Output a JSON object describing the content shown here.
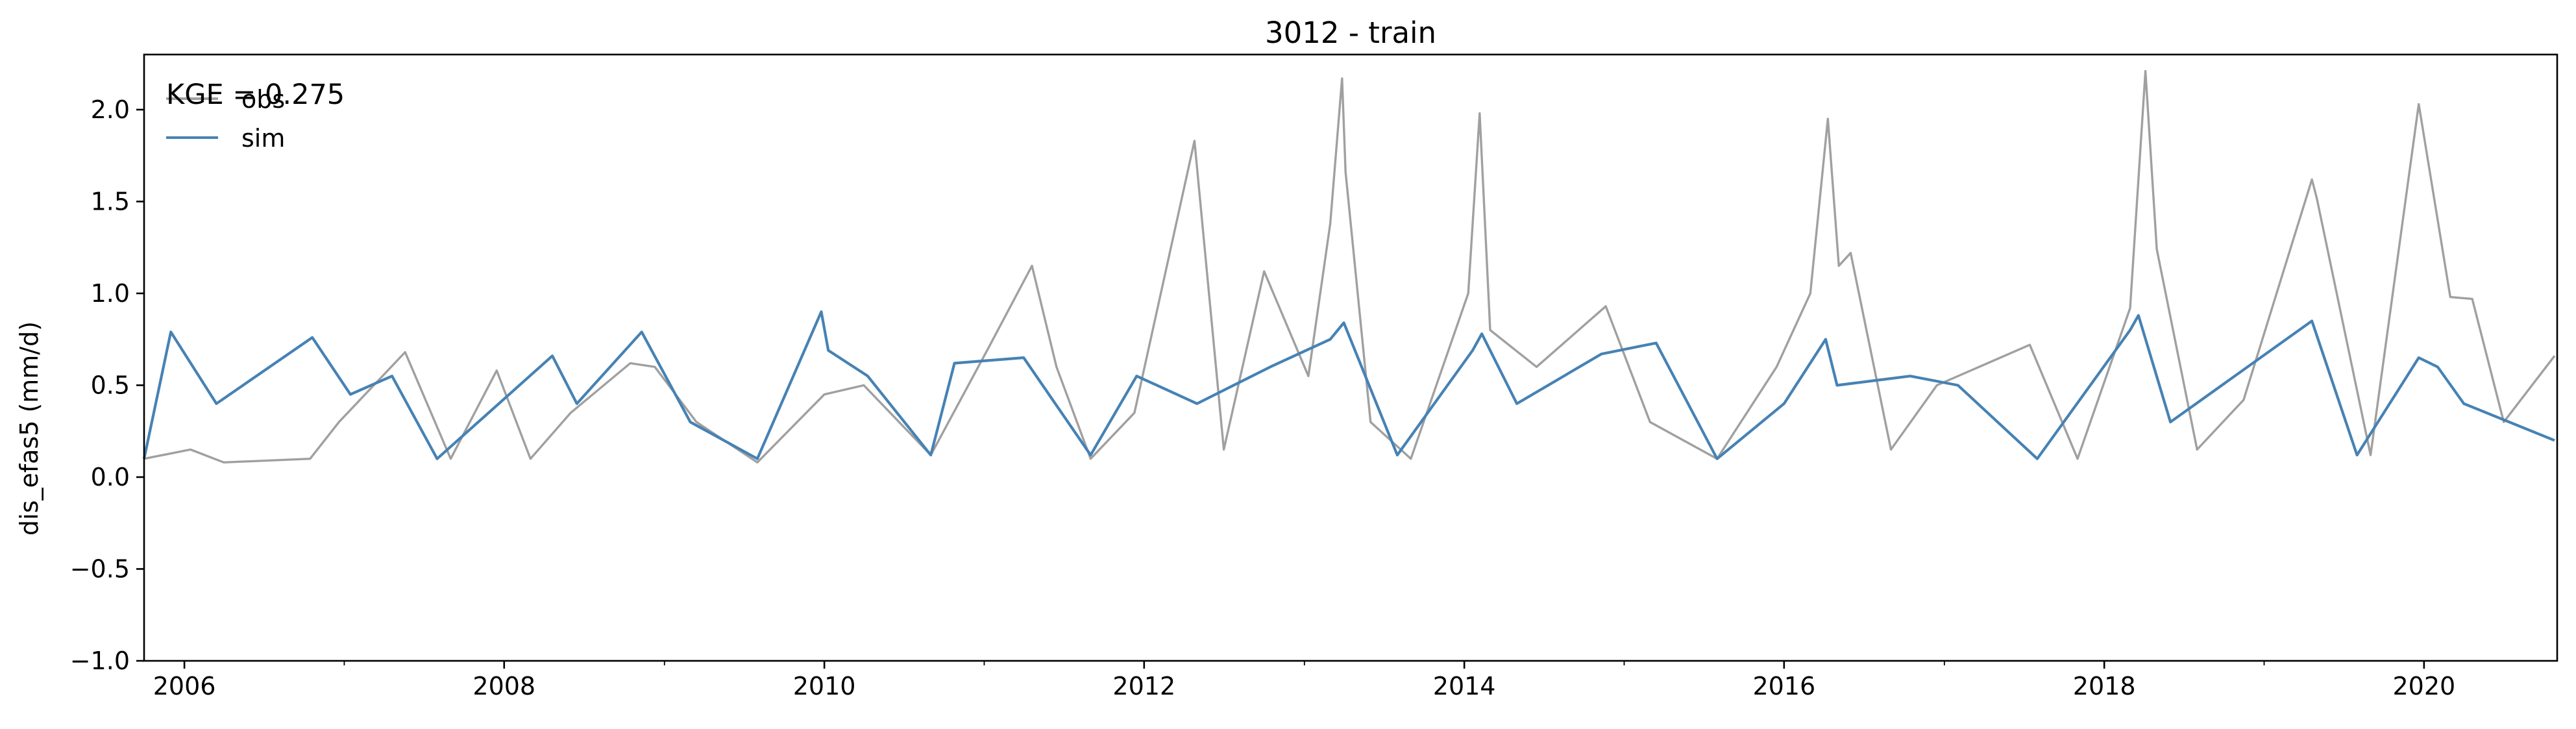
{
  "chart_data": {
    "type": "line",
    "title": "3012 - train",
    "xlabel": "",
    "ylabel": "dis_efas5 (mm/d)",
    "xlim": [
      "2005-10-01",
      "2020-10-31"
    ],
    "ylim": [
      -1.0,
      2.3
    ],
    "yticks": [
      -1.0,
      -0.5,
      0.0,
      0.5,
      1.0,
      1.5,
      2.0
    ],
    "ytick_labels": [
      "−1.0",
      "−0.5",
      "0.0",
      "0.5",
      "1.0",
      "1.5",
      "2.0"
    ],
    "xticks": [
      "2006-01-01",
      "2008-01-01",
      "2010-01-01",
      "2012-01-01",
      "2014-01-01",
      "2016-01-01",
      "2018-01-01",
      "2020-01-01"
    ],
    "xtick_labels": [
      "2006",
      "2008",
      "2010",
      "2012",
      "2014",
      "2016",
      "2018",
      "2020"
    ],
    "grid": false,
    "legend": "top-left",
    "annotation": "KGE = 0.275",
    "series": [
      {
        "name": "obs",
        "color": "#a0a0a0",
        "points": [
          [
            "2005-10-01",
            0.1
          ],
          [
            "2006-01-15",
            0.15
          ],
          [
            "2006-04-01",
            0.08
          ],
          [
            "2006-10-15",
            0.1
          ],
          [
            "2006-12-20",
            0.3
          ],
          [
            "2007-05-20",
            0.68
          ],
          [
            "2007-09-01",
            0.1
          ],
          [
            "2007-12-15",
            0.58
          ],
          [
            "2008-03-01",
            0.1
          ],
          [
            "2008-06-01",
            0.35
          ],
          [
            "2008-10-15",
            0.62
          ],
          [
            "2008-12-10",
            0.6
          ],
          [
            "2009-03-15",
            0.3
          ],
          [
            "2009-08-01",
            0.08
          ],
          [
            "2010-01-01",
            0.45
          ],
          [
            "2010-04-01",
            0.5
          ],
          [
            "2010-09-01",
            0.12
          ],
          [
            "2011-01-10",
            0.7
          ],
          [
            "2011-04-20",
            1.15
          ],
          [
            "2011-06-15",
            0.6
          ],
          [
            "2011-09-01",
            0.1
          ],
          [
            "2011-12-10",
            0.35
          ],
          [
            "2012-04-25",
            1.83
          ],
          [
            "2012-07-01",
            0.15
          ],
          [
            "2012-10-01",
            1.12
          ],
          [
            "2013-01-10",
            0.55
          ],
          [
            "2013-03-01",
            1.38
          ],
          [
            "2013-03-28",
            2.17
          ],
          [
            "2013-04-05",
            1.66
          ],
          [
            "2013-06-01",
            0.3
          ],
          [
            "2013-09-01",
            0.1
          ],
          [
            "2014-01-10",
            1.0
          ],
          [
            "2014-02-05",
            1.98
          ],
          [
            "2014-03-01",
            0.8
          ],
          [
            "2014-06-15",
            0.6
          ],
          [
            "2014-11-20",
            0.93
          ],
          [
            "2015-03-01",
            0.3
          ],
          [
            "2015-08-01",
            0.1
          ],
          [
            "2015-12-15",
            0.6
          ],
          [
            "2016-03-01",
            1.0
          ],
          [
            "2016-04-10",
            1.95
          ],
          [
            "2016-05-05",
            1.15
          ],
          [
            "2016-06-01",
            1.22
          ],
          [
            "2016-09-01",
            0.15
          ],
          [
            "2016-12-15",
            0.5
          ],
          [
            "2017-07-15",
            0.72
          ],
          [
            "2017-11-01",
            0.1
          ],
          [
            "2018-03-01",
            0.92
          ],
          [
            "2018-04-05",
            2.21
          ],
          [
            "2018-05-01",
            1.24
          ],
          [
            "2018-08-01",
            0.15
          ],
          [
            "2018-11-15",
            0.42
          ],
          [
            "2019-04-20",
            1.62
          ],
          [
            "2019-05-01",
            1.52
          ],
          [
            "2019-09-01",
            0.12
          ],
          [
            "2019-12-20",
            2.03
          ],
          [
            "2020-03-01",
            0.98
          ],
          [
            "2020-04-20",
            0.97
          ],
          [
            "2020-07-01",
            0.3
          ],
          [
            "2020-10-25",
            0.66
          ]
        ]
      },
      {
        "name": "sim",
        "color": "#4682b4",
        "points": [
          [
            "2005-10-01",
            0.1
          ],
          [
            "2005-12-01",
            0.79
          ],
          [
            "2006-03-15",
            0.4
          ],
          [
            "2006-10-20",
            0.76
          ],
          [
            "2007-01-15",
            0.45
          ],
          [
            "2007-04-20",
            0.55
          ],
          [
            "2007-08-01",
            0.1
          ],
          [
            "2008-04-20",
            0.66
          ],
          [
            "2008-06-15",
            0.4
          ],
          [
            "2008-11-10",
            0.79
          ],
          [
            "2009-03-01",
            0.3
          ],
          [
            "2009-08-01",
            0.1
          ],
          [
            "2009-12-25",
            0.9
          ],
          [
            "2010-01-10",
            0.69
          ],
          [
            "2010-04-10",
            0.55
          ],
          [
            "2010-09-01",
            0.12
          ],
          [
            "2010-10-25",
            0.62
          ],
          [
            "2011-04-01",
            0.65
          ],
          [
            "2011-09-01",
            0.12
          ],
          [
            "2011-12-15",
            0.55
          ],
          [
            "2012-05-01",
            0.4
          ],
          [
            "2012-10-15",
            0.6
          ],
          [
            "2013-03-01",
            0.75
          ],
          [
            "2013-04-01",
            0.84
          ],
          [
            "2013-08-01",
            0.12
          ],
          [
            "2014-01-20",
            0.69
          ],
          [
            "2014-02-10",
            0.78
          ],
          [
            "2014-05-01",
            0.4
          ],
          [
            "2014-11-10",
            0.67
          ],
          [
            "2015-03-15",
            0.73
          ],
          [
            "2015-08-01",
            0.1
          ],
          [
            "2016-01-01",
            0.4
          ],
          [
            "2016-04-05",
            0.75
          ],
          [
            "2016-05-01",
            0.5
          ],
          [
            "2016-10-15",
            0.55
          ],
          [
            "2017-02-01",
            0.5
          ],
          [
            "2017-08-01",
            0.1
          ],
          [
            "2018-03-01",
            0.8
          ],
          [
            "2018-03-20",
            0.88
          ],
          [
            "2018-06-01",
            0.3
          ],
          [
            "2019-04-20",
            0.85
          ],
          [
            "2019-08-01",
            0.12
          ],
          [
            "2019-12-20",
            0.65
          ],
          [
            "2020-02-01",
            0.6
          ],
          [
            "2020-04-01",
            0.4
          ],
          [
            "2020-10-25",
            0.2
          ]
        ]
      }
    ]
  }
}
